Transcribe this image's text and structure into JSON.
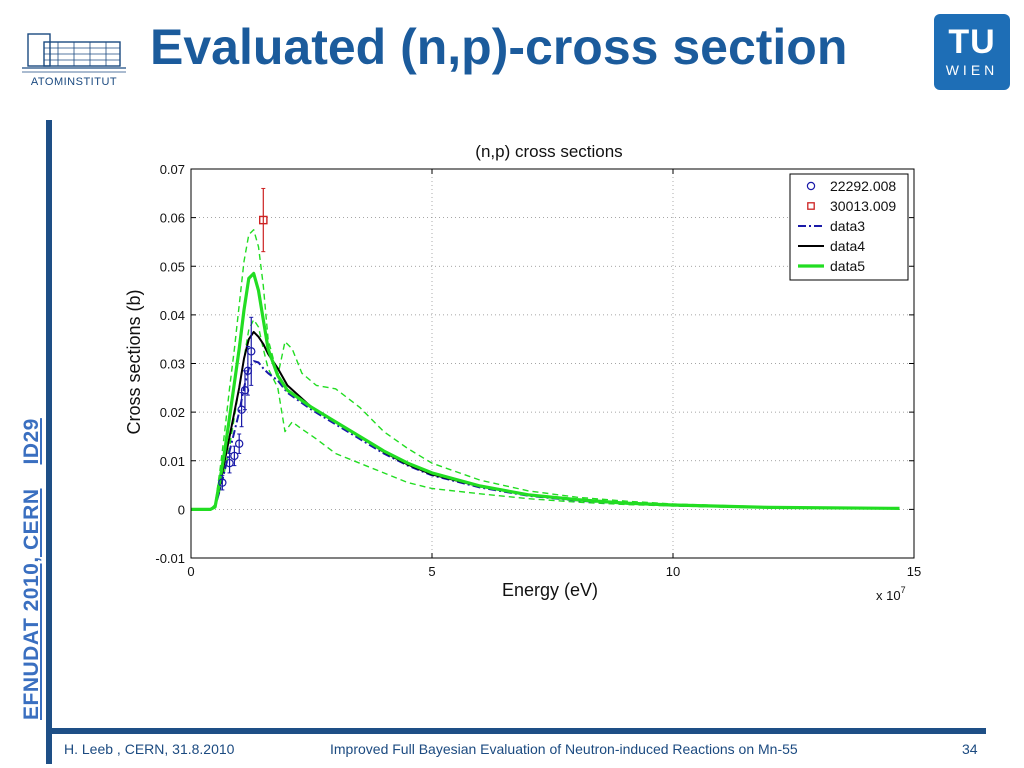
{
  "header": {
    "title": "Evaluated (n,p)-cross section",
    "left_logo_text": "ATOMINSTITUT",
    "right_logo": {
      "top": "TU",
      "bottom": "WIEN"
    }
  },
  "sidebar": {
    "text_part1": "EFNUDAT 2010, CERN",
    "text_part2": "ID29"
  },
  "footer": {
    "author": "H. Leeb , CERN, 31.8.2010",
    "talk_title": "Improved Full Bayesian Evaluation of Neutron-induced Reactions on Mn-55",
    "page_number": "34"
  },
  "colors": {
    "title": "#1b5b9c",
    "accent_bar": "#1e4f86",
    "series_green": "#22dd22",
    "series_black": "#000000",
    "series_blue": "#1a1aa8",
    "marker_red": "#cc2222"
  },
  "chart_data": {
    "type": "line",
    "title": "(n,p) cross sections",
    "xlabel": "Energy (eV)",
    "ylabel": "Cross sections (b)",
    "x_multiplier_label": "x 10",
    "x_multiplier_exp": "7",
    "xlim": [
      0,
      15
    ],
    "ylim": [
      -0.01,
      0.07
    ],
    "x_ticks": [
      0,
      5,
      10,
      15
    ],
    "y_ticks": [
      -0.01,
      0,
      0.01,
      0.02,
      0.03,
      0.04,
      0.05,
      0.06,
      0.07
    ],
    "y_tick_labels": [
      "-0.01",
      "0",
      "0.01",
      "0.02",
      "0.03",
      "0.04",
      "0.05",
      "0.06",
      "0.07"
    ],
    "grid": true,
    "legend_position": "top-right",
    "series": [
      {
        "name": "22292.008",
        "style": "circle-markers",
        "color": "#1a1aa8",
        "x": [
          0.65,
          0.8,
          0.9,
          1.0,
          1.05,
          1.12,
          1.18,
          1.25
        ],
        "y": [
          0.0055,
          0.0095,
          0.011,
          0.0135,
          0.0205,
          0.0245,
          0.0285,
          0.0325
        ],
        "err": [
          0.0015,
          0.002,
          0.002,
          0.002,
          0.0035,
          0.004,
          0.005,
          0.007
        ]
      },
      {
        "name": "30013.009",
        "style": "square-markers",
        "color": "#cc2222",
        "x": [
          1.5
        ],
        "y": [
          0.0595
        ],
        "err": [
          0.0065
        ]
      },
      {
        "name": "data3",
        "style": "dash-dot",
        "color": "#1a1aa8",
        "x": [
          0,
          0.4,
          0.5,
          0.6,
          0.7,
          0.8,
          0.9,
          1.0,
          1.1,
          1.2,
          1.3,
          1.4,
          1.5,
          1.6,
          1.8,
          2.0,
          2.5,
          3.0,
          3.5,
          4.0,
          4.5,
          5.0,
          6.0,
          7.0,
          8.0,
          9.0,
          10.0,
          12.0,
          14.7
        ],
        "y": [
          0,
          0,
          0.0005,
          0.004,
          0.008,
          0.012,
          0.016,
          0.02,
          0.025,
          0.029,
          0.0305,
          0.0302,
          0.029,
          0.028,
          0.0265,
          0.024,
          0.0205,
          0.0175,
          0.0145,
          0.0115,
          0.009,
          0.007,
          0.0045,
          0.0028,
          0.0018,
          0.0012,
          0.0008,
          0.0004,
          0.0002
        ]
      },
      {
        "name": "data4",
        "style": "solid",
        "color": "#000000",
        "x": [
          0,
          0.4,
          0.5,
          0.6,
          0.7,
          0.8,
          0.9,
          1.0,
          1.1,
          1.2,
          1.3,
          1.4,
          1.5,
          1.6,
          1.8,
          2.0,
          2.5,
          3.0,
          3.5,
          4.0,
          4.5,
          5.0,
          6.0,
          7.0,
          8.0,
          9.0,
          10.0,
          12.0,
          14.7
        ],
        "y": [
          0,
          0,
          0.0005,
          0.005,
          0.01,
          0.015,
          0.02,
          0.025,
          0.031,
          0.035,
          0.0365,
          0.0355,
          0.034,
          0.032,
          0.029,
          0.0255,
          0.021,
          0.018,
          0.015,
          0.0118,
          0.0092,
          0.0072,
          0.0047,
          0.003,
          0.0019,
          0.0013,
          0.0009,
          0.0004,
          0.0002
        ]
      },
      {
        "name": "data5",
        "style": "solid-thick",
        "color": "#22dd22",
        "x": [
          0,
          0.4,
          0.5,
          0.6,
          0.7,
          0.8,
          0.9,
          1.0,
          1.1,
          1.2,
          1.3,
          1.4,
          1.5,
          1.6,
          1.8,
          2.0,
          2.5,
          3.0,
          3.5,
          4.0,
          4.5,
          5.0,
          6.0,
          7.0,
          8.0,
          9.0,
          10.0,
          12.0,
          14.7
        ],
        "y": [
          0,
          0,
          0.0005,
          0.006,
          0.012,
          0.019,
          0.026,
          0.033,
          0.041,
          0.0475,
          0.0485,
          0.045,
          0.039,
          0.033,
          0.0275,
          0.0245,
          0.021,
          0.018,
          0.015,
          0.012,
          0.0095,
          0.0075,
          0.0048,
          0.003,
          0.002,
          0.0013,
          0.0009,
          0.0004,
          0.0002
        ]
      },
      {
        "name": "",
        "style": "dashed",
        "color": "#22dd22",
        "band": "upper",
        "x": [
          0,
          0.4,
          0.5,
          0.6,
          0.7,
          0.8,
          0.9,
          1.0,
          1.1,
          1.2,
          1.3,
          1.4,
          1.5,
          1.6,
          1.8,
          1.95,
          2.1,
          2.3,
          2.6,
          3.0,
          3.5,
          4.0,
          4.5,
          5.0,
          6.0,
          7.0,
          8.0,
          9.0,
          10.0,
          12.0,
          14.7
        ],
        "y": [
          0,
          0,
          0.001,
          0.008,
          0.016,
          0.025,
          0.033,
          0.042,
          0.051,
          0.0565,
          0.0575,
          0.054,
          0.046,
          0.035,
          0.0275,
          0.0345,
          0.033,
          0.028,
          0.0255,
          0.0248,
          0.021,
          0.016,
          0.0125,
          0.0095,
          0.006,
          0.0038,
          0.0025,
          0.0017,
          0.0011,
          0.0005,
          0.0002
        ]
      },
      {
        "name": "",
        "style": "dashed",
        "color": "#22dd22",
        "band": "lower",
        "x": [
          0,
          0.4,
          0.5,
          0.6,
          0.7,
          0.8,
          0.9,
          1.0,
          1.1,
          1.2,
          1.3,
          1.4,
          1.5,
          1.6,
          1.8,
          1.95,
          2.1,
          2.3,
          2.6,
          3.0,
          3.5,
          4.0,
          4.5,
          5.0,
          6.0,
          7.0,
          8.0,
          9.0,
          10.0,
          12.0,
          14.7
        ],
        "y": [
          0,
          0,
          0.0003,
          0.004,
          0.008,
          0.013,
          0.019,
          0.025,
          0.031,
          0.037,
          0.039,
          0.0375,
          0.033,
          0.029,
          0.025,
          0.016,
          0.018,
          0.0165,
          0.0145,
          0.0115,
          0.0095,
          0.0075,
          0.0055,
          0.0043,
          0.0032,
          0.0022,
          0.0015,
          0.001,
          0.0007,
          0.0003,
          0.0001
        ]
      }
    ]
  }
}
